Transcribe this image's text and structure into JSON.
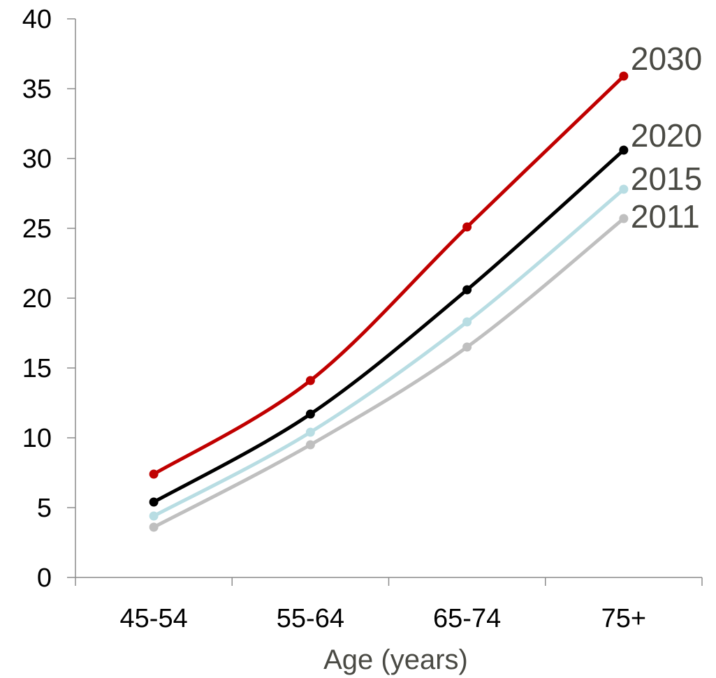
{
  "chart_data": {
    "type": "line",
    "xlabel": "Age (years)",
    "ylabel": "",
    "categories": [
      "45-54",
      "55-64",
      "65-74",
      "75+"
    ],
    "ylim": [
      0,
      40
    ],
    "yticks": [
      0,
      5,
      10,
      15,
      20,
      25,
      30,
      35,
      40
    ],
    "grid": false,
    "legend": "end-of-line labels",
    "series": [
      {
        "name": "2030",
        "color": "#c00000",
        "values": [
          7.4,
          14.1,
          25.1,
          35.9
        ]
      },
      {
        "name": "2020",
        "color": "#000000",
        "values": [
          5.4,
          11.7,
          20.6,
          30.6
        ]
      },
      {
        "name": "2015",
        "color": "#b8dde3",
        "values": [
          4.4,
          10.4,
          18.3,
          27.8
        ]
      },
      {
        "name": "2011",
        "color": "#bfbfbf",
        "values": [
          3.6,
          9.5,
          16.5,
          25.7
        ]
      }
    ]
  }
}
